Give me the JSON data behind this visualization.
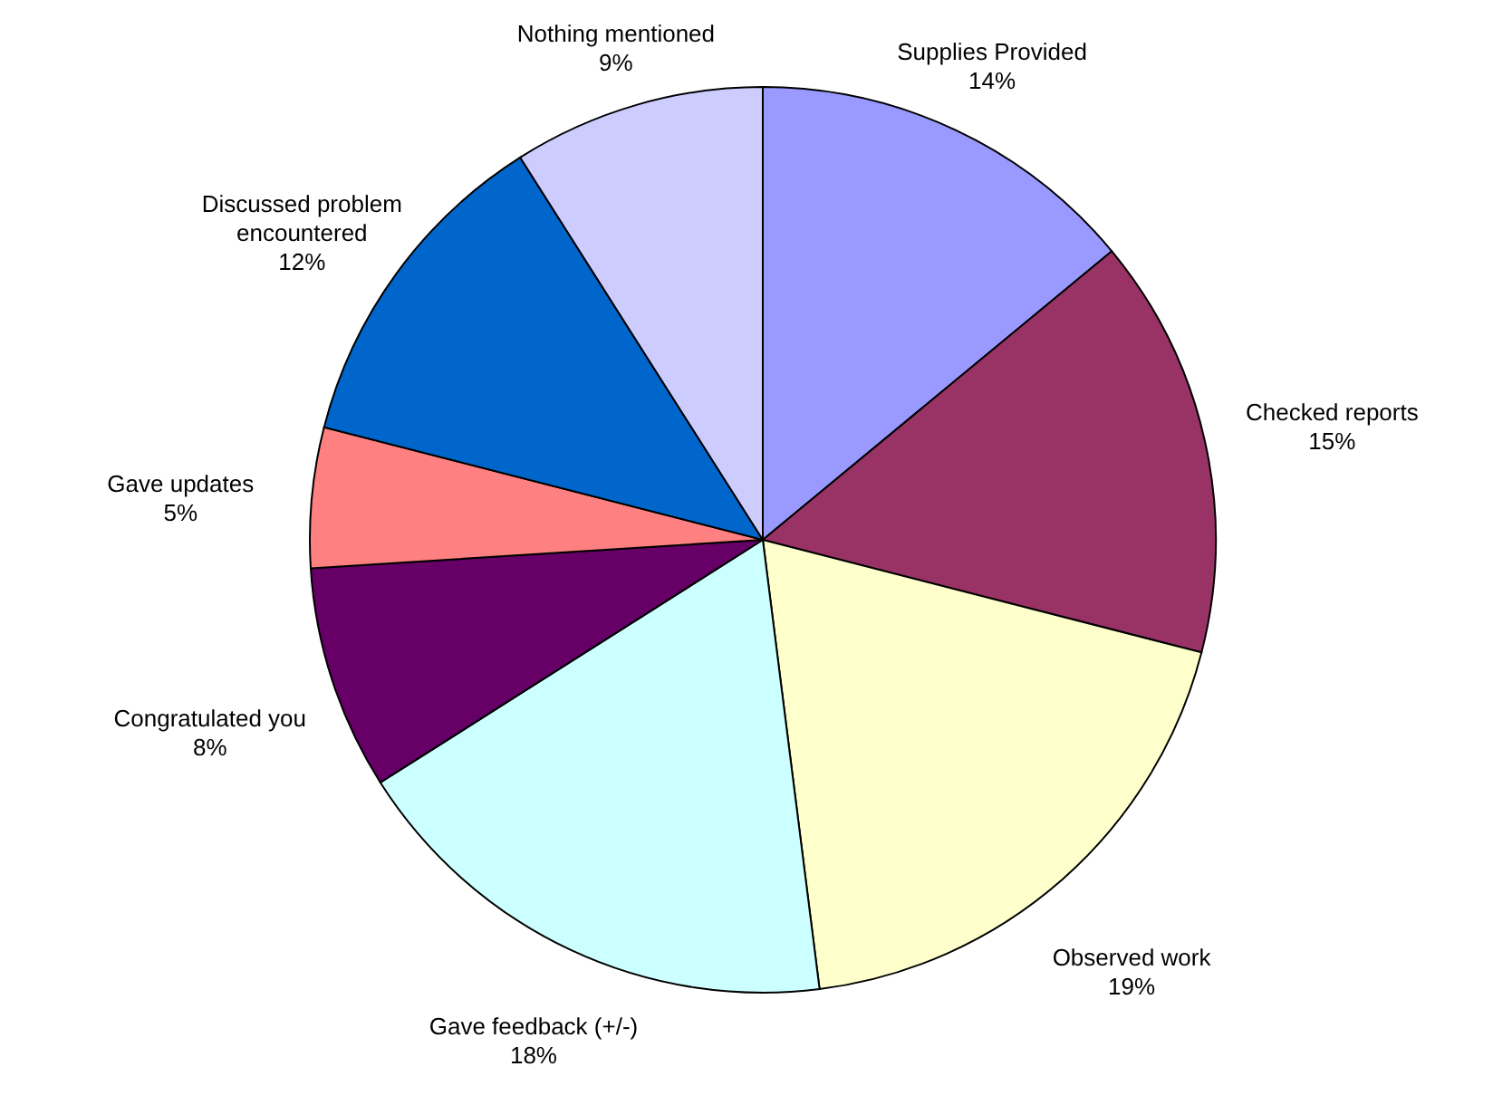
{
  "chart_data": {
    "type": "pie",
    "categories": [
      "Supplies Provided",
      "Checked reports",
      "Observed work",
      "Gave feedback (+/-)",
      "Congratulated you",
      "Gave updates",
      "Discussed problem encountered",
      "Nothing mentioned"
    ],
    "values": [
      14,
      15,
      19,
      18,
      8,
      5,
      12,
      9
    ],
    "value_labels": [
      "14%",
      "15%",
      "19%",
      "18%",
      "8%",
      "5%",
      "12%",
      "9%"
    ],
    "colors": [
      "#9999ff",
      "#993366",
      "#ffffcc",
      "#ccffff",
      "#660066",
      "#ff8080",
      "#0066cc",
      "#ccccff"
    ]
  }
}
